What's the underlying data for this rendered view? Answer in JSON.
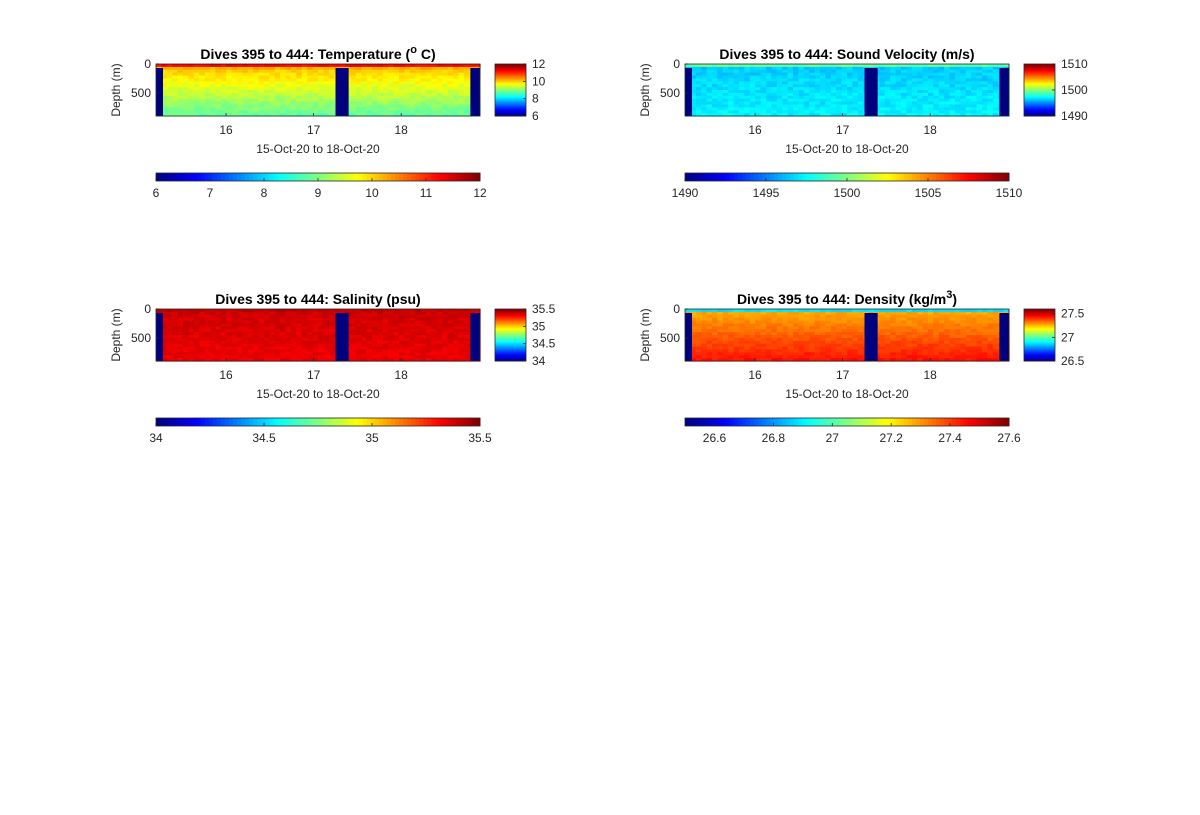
{
  "figure": {
    "background": "#ffffff"
  },
  "colormap": [
    "#00007f",
    "#0000ff",
    "#007fff",
    "#00ffff",
    "#7fff7f",
    "#ffff00",
    "#ff7f00",
    "#ff0000",
    "#7f0000"
  ],
  "chart_data": [
    {
      "type": "heatmap",
      "title": {
        "prefix": "Dives 395 to 444: Temperature (",
        "sup": "o",
        "suffix": " C)"
      },
      "xlabel": "15-Oct-20 to 18-Oct-20",
      "ylabel": "Depth (m)",
      "xticks": [
        "16",
        "17",
        "18"
      ],
      "xlim": [
        15.2,
        18.9
      ],
      "yticks": [
        "0",
        "500"
      ],
      "ylim": [
        0,
        900
      ],
      "colorbar": {
        "limits": [
          6,
          12
        ],
        "ticks": [
          "12",
          "10",
          "8",
          "6"
        ]
      },
      "colorbar_h": {
        "limits": [
          6,
          12
        ],
        "ticks": [
          "6",
          "7",
          "8",
          "9",
          "10",
          "11",
          "12"
        ]
      },
      "profile": {
        "surface_value": 11.8,
        "mixed_depth": 80,
        "deep_value": 10.1,
        "deep_gradient": -0.0016,
        "noise": 0.15
      },
      "data_gaps": [
        [
          15.2,
          15.28
        ],
        [
          17.25,
          17.4
        ],
        [
          18.79,
          18.9
        ]
      ]
    },
    {
      "type": "heatmap",
      "title": {
        "prefix": "Dives 395 to 444: Sound Velocity (m/s)",
        "sup": "",
        "suffix": ""
      },
      "xlabel": "15-Oct-20 to 18-Oct-20",
      "ylabel": "Depth (m)",
      "xticks": [
        "16",
        "17",
        "18"
      ],
      "xlim": [
        15.2,
        18.9
      ],
      "yticks": [
        "0",
        "500"
      ],
      "ylim": [
        0,
        900
      ],
      "colorbar": {
        "limits": [
          1490,
          1510
        ],
        "ticks": [
          "1510",
          "1500",
          "1490"
        ]
      },
      "colorbar_h": {
        "limits": [
          1490,
          1510
        ],
        "ticks": [
          "1490",
          "1495",
          "1500",
          "1505",
          "1510"
        ]
      },
      "profile": {
        "surface_value": 1501.5,
        "mixed_depth": 60,
        "deep_value": 1496.5,
        "deep_gradient": 0.001,
        "noise": 0.5
      },
      "data_gaps": [
        [
          15.2,
          15.28
        ],
        [
          17.25,
          17.4
        ],
        [
          18.79,
          18.9
        ]
      ]
    },
    {
      "type": "heatmap",
      "title": {
        "prefix": "Dives 395 to 444: Salinity (psu)",
        "sup": "",
        "suffix": ""
      },
      "xlabel": "15-Oct-20 to 18-Oct-20",
      "ylabel": "Depth (m)",
      "xticks": [
        "16",
        "17",
        "18"
      ],
      "xlim": [
        15.2,
        18.9
      ],
      "yticks": [
        "0",
        "500"
      ],
      "ylim": [
        0,
        900
      ],
      "colorbar": {
        "limits": [
          34,
          35.5
        ],
        "ticks": [
          "35.5",
          "35",
          "34.5",
          "34"
        ]
      },
      "colorbar_h": {
        "limits": [
          34,
          35.5
        ],
        "ticks": [
          "34",
          "34.5",
          "35",
          "35.5"
        ]
      },
      "profile": {
        "surface_value": 35.42,
        "mixed_depth": 80,
        "deep_value": 35.38,
        "deep_gradient": -5e-05,
        "noise": 0.03
      },
      "data_gaps": [
        [
          15.2,
          15.28
        ],
        [
          17.25,
          17.4
        ],
        [
          18.79,
          18.9
        ]
      ]
    },
    {
      "type": "heatmap",
      "title": {
        "prefix": "Dives 395 to 444: Density (kg/m",
        "sup": "3",
        "suffix": ")"
      },
      "xlabel": "15-Oct-20 to 18-Oct-20",
      "ylabel": "Depth (m)",
      "xticks": [
        "16",
        "17",
        "18"
      ],
      "xlim": [
        15.2,
        18.9
      ],
      "yticks": [
        "0",
        "500"
      ],
      "ylim": [
        0,
        900
      ],
      "colorbar": {
        "limits": [
          26.5,
          27.6
        ],
        "ticks": [
          "27.5",
          "27",
          "26.5"
        ]
      },
      "colorbar_h": {
        "limits": [
          26.5,
          27.6
        ],
        "ticks": [
          "26.6",
          "26.8",
          "27",
          "27.2",
          "27.4",
          "27.6"
        ]
      },
      "profile": {
        "surface_value": 26.6,
        "mixed_depth": 60,
        "deep_value": 27.28,
        "deep_gradient": 0.0002,
        "noise": 0.02
      },
      "data_gaps": [
        [
          15.2,
          15.28
        ],
        [
          17.25,
          17.4
        ],
        [
          18.79,
          18.9
        ]
      ]
    }
  ]
}
